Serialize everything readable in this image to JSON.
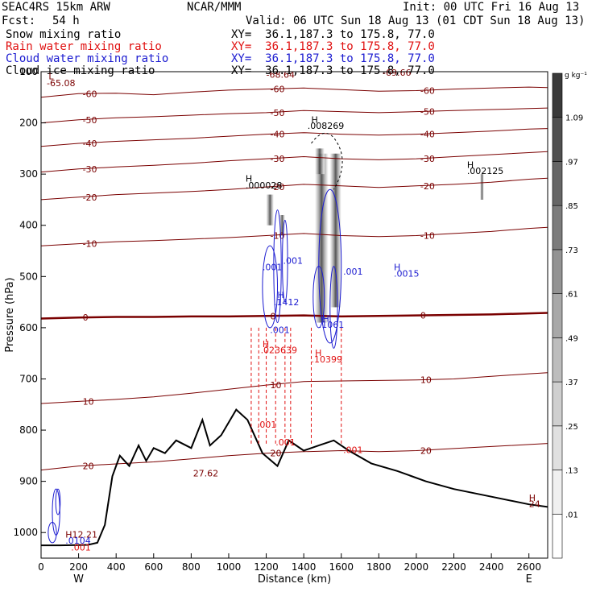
{
  "header": {
    "model": "SEAC4RS 15km ARW",
    "org": "NCAR/MMM",
    "init": "Init: 00 UTC Fri 16 Aug 13",
    "fcst_label": "Fcst:",
    "fcst_value": "54 h",
    "valid": "Valid: 06 UTC Sun 18 Aug 13 (01 CDT Sun 18 Aug 13)",
    "fields": [
      {
        "name": "Snow mixing ratio",
        "xy": "XY=  36.1,187.3 to 175.8, 77.0",
        "color": "#000000"
      },
      {
        "name": "Rain water mixing ratio",
        "xy": "XY=  36.1,187.3 to 175.8, 77.0",
        "color": "#e01010"
      },
      {
        "name": "Cloud water mixing ratio",
        "xy": "XY=  36.1,187.3 to 175.8, 77.0",
        "color": "#1a1ad0"
      },
      {
        "name": "Cloud ice mixing ratio",
        "xy": "XY=  36.1,187.3 to 175.8, 77.0",
        "color": "#000000"
      }
    ]
  },
  "chart_data": {
    "type": "cross-section",
    "xlabel": "Distance (km)",
    "ylabel": "Pressure (hPa)",
    "xlim": [
      0,
      2700
    ],
    "ylim": [
      1050,
      100
    ],
    "x_ticks": [
      0,
      200,
      400,
      600,
      800,
      1000,
      1200,
      1400,
      1600,
      1800,
      2000,
      2200,
      2400,
      2600
    ],
    "y_ticks": [
      200,
      300,
      400,
      500,
      600,
      700,
      800,
      900,
      1000
    ],
    "y_tick_labels_partial": [
      {
        "p": 100,
        "label": "100"
      }
    ],
    "left_end_label": "W",
    "right_end_label": "E",
    "colorbar": {
      "unit": "g kg⁻¹",
      "levels": [
        ".01",
        ".13",
        ".25",
        ".37",
        ".49",
        ".61",
        ".73",
        ".85",
        ".97",
        "1.09"
      ],
      "colors": [
        "#ffffff",
        "#f0f0f0",
        "#e0e0e0",
        "#cfcfcf",
        "#bdbdbd",
        "#a8a8a8",
        "#939393",
        "#7c7c7c",
        "#666666",
        "#505050",
        "#3a3a3a"
      ]
    },
    "temperature_contours": [
      {
        "label": "-60",
        "p": [
          150,
          143,
          142,
          145,
          140,
          136,
          134,
          132,
          135,
          138,
          137,
          134,
          132,
          130,
          131
        ],
        "x": [
          0,
          200,
          400,
          600,
          800,
          1000,
          1200,
          1400,
          1600,
          1800,
          2000,
          2200,
          2400,
          2600,
          2700
        ]
      },
      {
        "label": "-50",
        "p": [
          200,
          194,
          190,
          188,
          185,
          182,
          180,
          176,
          178,
          180,
          178,
          176,
          174,
          172,
          171
        ]
      },
      {
        "label": "-40",
        "p": [
          246,
          240,
          236,
          233,
          230,
          226,
          222,
          219,
          222,
          224,
          222,
          219,
          216,
          212,
          211
        ]
      },
      {
        "label": "-30",
        "p": [
          296,
          290,
          286,
          283,
          279,
          274,
          270,
          266,
          270,
          272,
          270,
          266,
          262,
          258,
          256
        ]
      },
      {
        "label": "-20",
        "p": [
          350,
          345,
          340,
          337,
          334,
          330,
          325,
          320,
          323,
          326,
          323,
          320,
          316,
          310,
          308
        ]
      },
      {
        "label": "-10",
        "p": [
          440,
          436,
          432,
          430,
          427,
          424,
          420,
          416,
          420,
          422,
          420,
          416,
          412,
          406,
          404
        ]
      },
      {
        "label": "0",
        "p": [
          582,
          580,
          579,
          579,
          578,
          578,
          577,
          576,
          578,
          577,
          576,
          575,
          574,
          572,
          571
        ]
      },
      {
        "label": "10",
        "p": [
          748,
          744,
          740,
          735,
          728,
          720,
          712,
          705,
          704,
          703,
          702,
          700,
          695,
          690,
          688
        ]
      },
      {
        "label": "20",
        "p": [
          878,
          870,
          866,
          862,
          856,
          850,
          845,
          842,
          840,
          842,
          840,
          836,
          832,
          828,
          826
        ]
      }
    ],
    "terrain_p": [
      1025,
      1025,
      1024,
      1020,
      985,
      890,
      850,
      870,
      830,
      860,
      835,
      845,
      820,
      835,
      780,
      830,
      810,
      760,
      780,
      845,
      870,
      820,
      840,
      830,
      820,
      840,
      865,
      880,
      900,
      915,
      930,
      945,
      950
    ],
    "terrain_x": [
      0,
      100,
      250,
      300,
      340,
      380,
      420,
      470,
      520,
      560,
      600,
      660,
      720,
      800,
      860,
      900,
      960,
      1040,
      1100,
      1180,
      1260,
      1320,
      1400,
      1480,
      1560,
      1640,
      1760,
      1900,
      2050,
      2200,
      2400,
      2600,
      2700
    ],
    "annotations": [
      {
        "text": "L",
        "x": 40,
        "p": 115,
        "color": "#7a0000"
      },
      {
        "text": "-65.08",
        "x": 30,
        "p": 128,
        "color": "#7a0000"
      },
      {
        "text": "-68.64",
        "x": 1200,
        "p": 112,
        "color": "#7a0000"
      },
      {
        "text": "-69.66",
        "x": 1820,
        "p": 108,
        "color": "#7a0000"
      },
      {
        "text": "H",
        "x": 1440,
        "p": 200,
        "color": "#000000"
      },
      {
        "text": ".008269",
        "x": 1420,
        "p": 212,
        "color": "#000000"
      },
      {
        "text": "H",
        "x": 1090,
        "p": 315,
        "color": "#000000"
      },
      {
        "text": ".000028",
        "x": 1090,
        "p": 328,
        "color": "#000000"
      },
      {
        "text": "H",
        "x": 2270,
        "p": 288,
        "color": "#000000"
      },
      {
        "text": ".002125",
        "x": 2270,
        "p": 300,
        "color": "#000000"
      },
      {
        "text": ".001",
        "x": 1180,
        "p": 488,
        "color": "#1a1ad0"
      },
      {
        "text": ".001",
        "x": 1290,
        "p": 475,
        "color": "#1a1ad0"
      },
      {
        "text": "H",
        "x": 1260,
        "p": 542,
        "color": "#1a1ad0"
      },
      {
        "text": ".1412",
        "x": 1240,
        "p": 556,
        "color": "#1a1ad0"
      },
      {
        "text": ".001",
        "x": 1610,
        "p": 496,
        "color": "#1a1ad0"
      },
      {
        "text": "H",
        "x": 1880,
        "p": 488,
        "color": "#1a1ad0"
      },
      {
        "text": ".0015",
        "x": 1880,
        "p": 500,
        "color": "#1a1ad0"
      },
      {
        "text": ".001",
        "x": 1220,
        "p": 610,
        "color": "#1a1ad0"
      },
      {
        "text": "H",
        "x": 1500,
        "p": 588,
        "color": "#1a1ad0"
      },
      {
        "text": ".1061",
        "x": 1480,
        "p": 600,
        "color": "#1a1ad0"
      },
      {
        "text": "H",
        "x": 1180,
        "p": 638,
        "color": "#e01010"
      },
      {
        "text": ".023639",
        "x": 1170,
        "p": 650,
        "color": "#e01010"
      },
      {
        "text": "H",
        "x": 1460,
        "p": 655,
        "color": "#e01010"
      },
      {
        "text": ".10399",
        "x": 1440,
        "p": 668,
        "color": "#e01010"
      },
      {
        "text": ".001",
        "x": 1150,
        "p": 795,
        "color": "#e01010"
      },
      {
        "text": ".001",
        "x": 1250,
        "p": 830,
        "color": "#e01010"
      },
      {
        "text": ".001",
        "x": 1610,
        "p": 845,
        "color": "#e01010"
      },
      {
        "text": "27.62",
        "x": 810,
        "p": 890,
        "color": "#7a0000"
      },
      {
        "text": "H",
        "x": 2600,
        "p": 938,
        "color": "#7a0000"
      },
      {
        "text": "24",
        "x": 2600,
        "p": 950,
        "color": "#7a0000"
      },
      {
        "text": "H12.21",
        "x": 130,
        "p": 1010,
        "color": "#7a0000"
      },
      {
        "text": ".0104",
        "x": 130,
        "p": 1022,
        "color": "#1a1ad0"
      },
      {
        "text": ".001",
        "x": 160,
        "p": 1035,
        "color": "#e01010"
      }
    ]
  }
}
